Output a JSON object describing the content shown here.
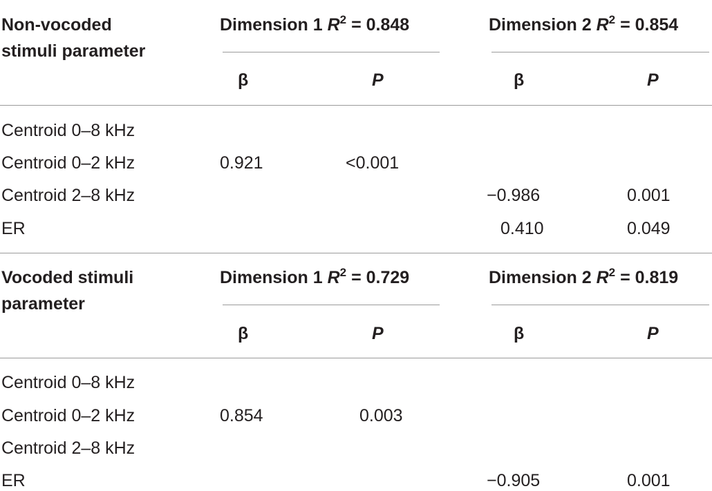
{
  "sections": [
    {
      "header_line1": "Non-vocoded",
      "header_line2": "stimuli parameter",
      "dim1": {
        "label": "Dimension 1 ",
        "r": "R",
        "sup": "2",
        "value": " = 0.848"
      },
      "dim2": {
        "label": "Dimension 2 ",
        "r": "R",
        "sup": "2",
        "value": " = 0.854"
      },
      "beta": "β",
      "p": "P",
      "rows": [
        {
          "param": "Centroid 0–8 kHz",
          "b1": "",
          "p1": "",
          "b2": "",
          "p2": ""
        },
        {
          "param": "Centroid 0–2 kHz",
          "b1": "0.921",
          "p1": "<0.001",
          "b2": "",
          "p2": ""
        },
        {
          "param": "Centroid 2–8 kHz",
          "b1": "",
          "p1": "",
          "b2": "−0.986",
          "p2": "0.001"
        },
        {
          "param": "ER",
          "b1": "",
          "p1": "",
          "b2": "0.410",
          "p2": "0.049"
        }
      ]
    },
    {
      "header_line1": "Vocoded stimuli",
      "header_line2": "parameter",
      "dim1": {
        "label": "Dimension 1 ",
        "r": "R",
        "sup": "2",
        "value": " = 0.729"
      },
      "dim2": {
        "label": "Dimension 2 ",
        "r": "R",
        "sup": "2",
        "value": " = 0.819"
      },
      "beta": "β",
      "p": "P",
      "rows": [
        {
          "param": "Centroid 0–8 kHz",
          "b1": "",
          "p1": "",
          "b2": "",
          "p2": ""
        },
        {
          "param": "Centroid 0–2 kHz",
          "b1": "0.854",
          "p1": "0.003",
          "b2": "",
          "p2": ""
        },
        {
          "param": "Centroid 2–8 kHz",
          "b1": "",
          "p1": "",
          "b2": "",
          "p2": ""
        },
        {
          "param": "ER",
          "b1": "",
          "p1": "",
          "b2": "−0.905",
          "p2": "0.001"
        }
      ]
    }
  ]
}
